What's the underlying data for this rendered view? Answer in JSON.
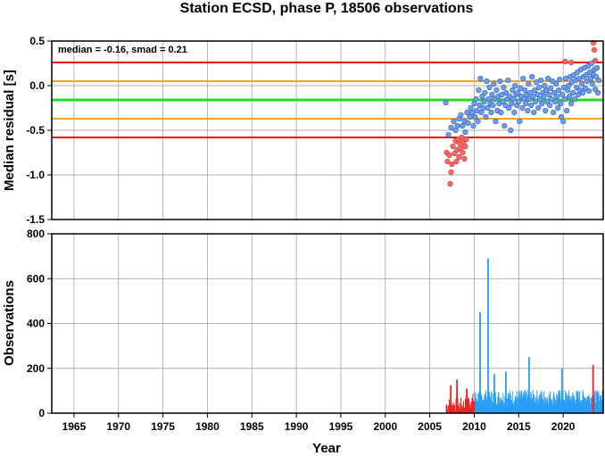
{
  "chart_data": [
    {
      "type": "scatter",
      "title": "Station ECSD, phase P, 18506 observations",
      "xlabel": "",
      "ylabel": "Median residual [s]",
      "xlim": [
        1962.5,
        2024.5
      ],
      "ylim": [
        -1.5,
        0.5
      ],
      "y_ticks": [
        "-1.5",
        "-1.0",
        "-0.5",
        "0.0",
        "0.5"
      ],
      "grid": true,
      "annotation": "median = -0.16, smad = 0.21",
      "hlines": [
        {
          "y": 0.26,
          "color": "#ee1111"
        },
        {
          "y": 0.05,
          "color": "#f5a623"
        },
        {
          "y": -0.16,
          "color": "#22dd22"
        },
        {
          "y": -0.37,
          "color": "#f5a623"
        },
        {
          "y": -0.58,
          "color": "#ee1111"
        }
      ],
      "colors": {
        "normal": "#6a9eee",
        "outlier": "#ff6666"
      },
      "series": [
        {
          "kind": "normal",
          "points": [
            [
              2006.8,
              -0.19
            ],
            [
              2007.1,
              -0.55
            ],
            [
              2007.4,
              -0.47
            ],
            [
              2007.7,
              -0.4
            ],
            [
              2007.9,
              -0.5
            ],
            [
              2008.1,
              -0.45
            ],
            [
              2008.3,
              -0.37
            ],
            [
              2008.5,
              -0.33
            ],
            [
              2008.7,
              -0.45
            ],
            [
              2008.9,
              -0.4
            ],
            [
              2009.0,
              -0.52
            ],
            [
              2009.2,
              -0.3
            ],
            [
              2009.3,
              -0.42
            ],
            [
              2009.5,
              -0.35
            ],
            [
              2009.6,
              -0.25
            ],
            [
              2009.8,
              -0.3
            ],
            [
              2009.9,
              -0.45
            ],
            [
              2010.0,
              -0.2
            ],
            [
              2010.1,
              -0.35
            ],
            [
              2010.2,
              -0.15
            ],
            [
              2010.3,
              -0.28
            ],
            [
              2010.4,
              -0.4
            ],
            [
              2010.5,
              -0.05
            ],
            [
              2010.6,
              -0.22
            ],
            [
              2010.7,
              0.08
            ],
            [
              2010.8,
              -0.3
            ],
            [
              2010.9,
              -0.12
            ],
            [
              2011.0,
              -0.25
            ],
            [
              2011.1,
              -0.18
            ],
            [
              2011.2,
              -0.08
            ],
            [
              2011.3,
              -0.35
            ],
            [
              2011.4,
              0.05
            ],
            [
              2011.5,
              -0.25
            ],
            [
              2011.6,
              -0.15
            ],
            [
              2011.7,
              -0.02
            ],
            [
              2011.8,
              -0.2
            ],
            [
              2011.9,
              -0.3
            ],
            [
              2012.0,
              -0.1
            ],
            [
              2012.1,
              -0.22
            ],
            [
              2012.2,
              0.02
            ],
            [
              2012.3,
              -0.15
            ],
            [
              2012.4,
              -0.4
            ],
            [
              2012.5,
              -0.05
            ],
            [
              2012.6,
              -0.28
            ],
            [
              2012.7,
              -0.12
            ],
            [
              2012.8,
              -0.2
            ],
            [
              2012.9,
              0.05
            ],
            [
              2013.0,
              -0.3
            ],
            [
              2013.1,
              -0.1
            ],
            [
              2013.2,
              -0.18
            ],
            [
              2013.3,
              -0.02
            ],
            [
              2013.4,
              -0.45
            ],
            [
              2013.5,
              -0.22
            ],
            [
              2013.6,
              -0.08
            ],
            [
              2013.7,
              -0.15
            ],
            [
              2013.8,
              0.06
            ],
            [
              2013.9,
              -0.25
            ],
            [
              2014.0,
              -0.12
            ],
            [
              2014.1,
              -0.5
            ],
            [
              2014.2,
              -0.2
            ],
            [
              2014.3,
              -0.05
            ],
            [
              2014.4,
              -0.15
            ],
            [
              2014.5,
              -0.3
            ],
            [
              2014.6,
              0.0
            ],
            [
              2014.7,
              -0.1
            ],
            [
              2014.8,
              -0.22
            ],
            [
              2014.9,
              -0.08
            ],
            [
              2015.0,
              -0.18
            ],
            [
              2015.1,
              -0.4
            ],
            [
              2015.2,
              -0.03
            ],
            [
              2015.3,
              -0.12
            ],
            [
              2015.4,
              -0.25
            ],
            [
              2015.5,
              0.08
            ],
            [
              2015.6,
              -0.15
            ],
            [
              2015.7,
              -0.05
            ],
            [
              2015.8,
              -0.2
            ],
            [
              2015.9,
              -0.1
            ],
            [
              2016.0,
              -0.28
            ],
            [
              2016.1,
              0.02
            ],
            [
              2016.2,
              -0.15
            ],
            [
              2016.3,
              -0.08
            ],
            [
              2016.4,
              -0.22
            ],
            [
              2016.5,
              0.1
            ],
            [
              2016.6,
              -0.12
            ],
            [
              2016.7,
              -0.3
            ],
            [
              2016.8,
              -0.05
            ],
            [
              2016.9,
              -0.18
            ],
            [
              2017.0,
              0.04
            ],
            [
              2017.1,
              -0.1
            ],
            [
              2017.2,
              -0.25
            ],
            [
              2017.3,
              -0.02
            ],
            [
              2017.4,
              -0.15
            ],
            [
              2017.5,
              0.06
            ],
            [
              2017.6,
              -0.2
            ],
            [
              2017.7,
              -0.08
            ],
            [
              2017.8,
              -0.12
            ],
            [
              2017.9,
              0.0
            ],
            [
              2018.0,
              -0.28
            ],
            [
              2018.1,
              -0.05
            ],
            [
              2018.2,
              -0.18
            ],
            [
              2018.3,
              0.08
            ],
            [
              2018.4,
              -0.1
            ],
            [
              2018.5,
              -0.22
            ],
            [
              2018.6,
              -0.03
            ],
            [
              2018.7,
              -0.15
            ],
            [
              2018.8,
              0.05
            ],
            [
              2018.9,
              -0.3
            ],
            [
              2019.0,
              -0.08
            ],
            [
              2019.1,
              -0.18
            ],
            [
              2019.2,
              0.02
            ],
            [
              2019.3,
              -0.12
            ],
            [
              2019.4,
              -0.25
            ],
            [
              2019.5,
              -0.05
            ],
            [
              2019.6,
              0.07
            ],
            [
              2019.7,
              -0.2
            ],
            [
              2019.8,
              -0.35
            ],
            [
              2019.9,
              -0.1
            ],
            [
              2020.0,
              -0.4
            ],
            [
              2020.1,
              -0.02
            ],
            [
              2020.2,
              -0.15
            ],
            [
              2020.3,
              0.08
            ],
            [
              2020.4,
              -0.28
            ],
            [
              2020.5,
              -0.05
            ],
            [
              2020.6,
              0.0
            ],
            [
              2020.7,
              -0.12
            ],
            [
              2020.8,
              0.1
            ],
            [
              2020.9,
              -0.2
            ],
            [
              2021.0,
              0.04
            ],
            [
              2021.1,
              -0.08
            ],
            [
              2021.2,
              0.12
            ],
            [
              2021.3,
              -0.15
            ],
            [
              2021.4,
              0.06
            ],
            [
              2021.5,
              -0.02
            ],
            [
              2021.6,
              0.15
            ],
            [
              2021.7,
              -0.1
            ],
            [
              2021.8,
              0.08
            ],
            [
              2021.9,
              -0.05
            ],
            [
              2022.0,
              0.18
            ],
            [
              2022.1,
              0.02
            ],
            [
              2022.2,
              -0.08
            ],
            [
              2022.3,
              0.1
            ],
            [
              2022.4,
              0.2
            ],
            [
              2022.5,
              -0.03
            ],
            [
              2022.6,
              0.12
            ],
            [
              2022.7,
              0.05
            ],
            [
              2022.8,
              0.22
            ],
            [
              2022.9,
              -0.06
            ],
            [
              2023.0,
              0.15
            ],
            [
              2023.1,
              0.08
            ],
            [
              2023.2,
              0.25
            ],
            [
              2023.3,
              0.02
            ],
            [
              2023.4,
              0.12
            ],
            [
              2023.5,
              0.18
            ],
            [
              2023.6,
              -0.04
            ],
            [
              2023.7,
              0.1
            ],
            [
              2023.8,
              0.2
            ],
            [
              2023.9,
              -0.08
            ],
            [
              2024.0,
              0.06
            ]
          ]
        },
        {
          "kind": "outlier",
          "points": [
            [
              2006.9,
              -0.75
            ],
            [
              2007.0,
              -0.85
            ],
            [
              2007.2,
              -0.78
            ],
            [
              2007.3,
              -1.1
            ],
            [
              2007.4,
              -0.97
            ],
            [
              2007.5,
              -0.88
            ],
            [
              2007.6,
              -0.68
            ],
            [
              2007.8,
              -0.76
            ],
            [
              2007.9,
              -0.62
            ],
            [
              2008.0,
              -0.85
            ],
            [
              2008.1,
              -0.72
            ],
            [
              2008.2,
              -0.6
            ],
            [
              2008.3,
              -0.8
            ],
            [
              2008.4,
              -0.65
            ],
            [
              2008.5,
              -0.7
            ],
            [
              2008.6,
              -0.58
            ],
            [
              2008.7,
              -0.75
            ],
            [
              2008.8,
              -0.63
            ],
            [
              2008.9,
              -0.82
            ],
            [
              2009.0,
              -0.68
            ],
            [
              2009.1,
              -0.6
            ],
            [
              2020.2,
              0.27
            ],
            [
              2020.9,
              0.26
            ],
            [
              2023.4,
              0.48
            ],
            [
              2023.5,
              0.4
            ],
            [
              2023.6,
              0.28
            ]
          ]
        }
      ]
    },
    {
      "type": "bar",
      "title": "",
      "xlabel": "Year",
      "ylabel": "Observations",
      "xlim": [
        1962.5,
        2024.5
      ],
      "ylim": [
        0,
        800
      ],
      "x_ticks": [
        "1965",
        "1970",
        "1975",
        "1980",
        "1985",
        "1990",
        "1995",
        "2000",
        "2005",
        "2010",
        "2015",
        "2020"
      ],
      "y_ticks": [
        "0",
        "200",
        "400",
        "600",
        "800"
      ],
      "grid": true,
      "colors": {
        "normal": "#2a9df4",
        "outlier": "#ee2222"
      },
      "spikes": [
        {
          "x": 2010.65,
          "value": 450,
          "kind": "normal"
        },
        {
          "x": 2011.55,
          "value": 690,
          "kind": "normal"
        },
        {
          "x": 2016.15,
          "value": 250,
          "kind": "normal"
        },
        {
          "x": 2013.55,
          "value": 185,
          "kind": "normal"
        },
        {
          "x": 2019.85,
          "value": 200,
          "kind": "normal"
        },
        {
          "x": 2012.25,
          "value": 175,
          "kind": "normal"
        },
        {
          "x": 2023.35,
          "value": 215,
          "kind": "outlier"
        },
        {
          "x": 2008.05,
          "value": 150,
          "kind": "outlier"
        },
        {
          "x": 2007.35,
          "value": 125,
          "kind": "outlier"
        },
        {
          "x": 2009.15,
          "value": 110,
          "kind": "outlier"
        }
      ],
      "red_range": [
        2006.8,
        2010.0
      ],
      "data_range": [
        2006.8,
        2024.5
      ],
      "base_level": 70
    }
  ]
}
